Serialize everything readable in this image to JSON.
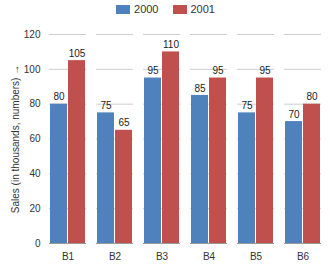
{
  "chart_data": {
    "type": "bar",
    "categories": [
      "B1",
      "B2",
      "B3",
      "B4",
      "B5",
      "B6"
    ],
    "series": [
      {
        "name": "2000",
        "color": "#4f81bd",
        "values": [
          80,
          75,
          95,
          85,
          75,
          70
        ]
      },
      {
        "name": "2001",
        "color": "#c0504d",
        "values": [
          105,
          65,
          110,
          95,
          95,
          80
        ]
      }
    ],
    "y_label": "Sales (in thousands, numbers)",
    "ylim": [
      0,
      120
    ],
    "yticks": [
      0,
      20,
      40,
      60,
      80,
      100,
      120
    ],
    "grid": true,
    "data_labels": true,
    "legend": "top"
  }
}
